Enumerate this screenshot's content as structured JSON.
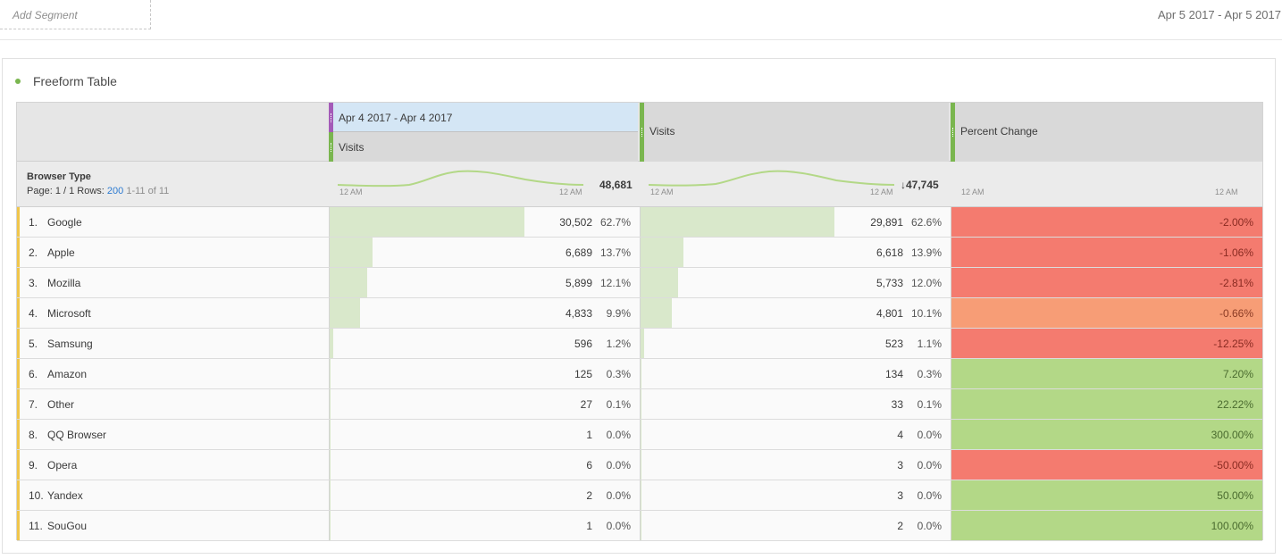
{
  "topbar": {
    "add_segment": "Add Segment",
    "date_range": "Apr 5 2017 - Apr 5 2017"
  },
  "panel": {
    "title": "Freeform Table"
  },
  "table": {
    "header": {
      "date_range_col": "Apr 4 2017 - Apr 4 2017",
      "metric1": "Visits",
      "metric2": "Visits",
      "metric3": "Percent Change"
    },
    "summary": {
      "dimension": "Browser Type",
      "page_label": "Page:",
      "page_value": "1 / 1",
      "rows_label": "Rows:",
      "rows_value": "200",
      "range": "1-11 of 11",
      "spark_start": "12 AM",
      "spark_end": "12 AM",
      "total1": "48,681",
      "total2": "47,745",
      "total2_arrow": "↓"
    },
    "rows": [
      {
        "idx": "1.",
        "name": "Google",
        "v1": "30,502",
        "p1": "62.7%",
        "v2": "29,891",
        "p2": "62.6%",
        "chg": "-2.00%"
      },
      {
        "idx": "2.",
        "name": "Apple",
        "v1": "6,689",
        "p1": "13.7%",
        "v2": "6,618",
        "p2": "13.9%",
        "chg": "-1.06%"
      },
      {
        "idx": "3.",
        "name": "Mozilla",
        "v1": "5,899",
        "p1": "12.1%",
        "v2": "5,733",
        "p2": "12.0%",
        "chg": "-2.81%"
      },
      {
        "idx": "4.",
        "name": "Microsoft",
        "v1": "4,833",
        "p1": "9.9%",
        "v2": "4,801",
        "p2": "10.1%",
        "chg": "-0.66%"
      },
      {
        "idx": "5.",
        "name": "Samsung",
        "v1": "596",
        "p1": "1.2%",
        "v2": "523",
        "p2": "1.1%",
        "chg": "-12.25%"
      },
      {
        "idx": "6.",
        "name": "Amazon",
        "v1": "125",
        "p1": "0.3%",
        "v2": "134",
        "p2": "0.3%",
        "chg": "7.20%"
      },
      {
        "idx": "7.",
        "name": "Other",
        "v1": "27",
        "p1": "0.1%",
        "v2": "33",
        "p2": "0.1%",
        "chg": "22.22%"
      },
      {
        "idx": "8.",
        "name": "QQ Browser",
        "v1": "1",
        "p1": "0.0%",
        "v2": "4",
        "p2": "0.0%",
        "chg": "300.00%"
      },
      {
        "idx": "9.",
        "name": "Opera",
        "v1": "6",
        "p1": "0.0%",
        "v2": "3",
        "p2": "0.0%",
        "chg": "-50.00%"
      },
      {
        "idx": "10.",
        "name": "Yandex",
        "v1": "2",
        "p1": "0.0%",
        "v2": "3",
        "p2": "0.0%",
        "chg": "50.00%"
      },
      {
        "idx": "11.",
        "name": "SouGou",
        "v1": "1",
        "p1": "0.0%",
        "v2": "2",
        "p2": "0.0%",
        "chg": "100.00%"
      }
    ]
  },
  "colors": {
    "negative_strong": "#f47b6f",
    "negative_light": "#f79d76",
    "positive": "#b3d887",
    "bar": "#d9e8cb",
    "row_accent": "#f0c64b",
    "component_green": "#7ab64f",
    "component_purple": "#a45bb8"
  }
}
